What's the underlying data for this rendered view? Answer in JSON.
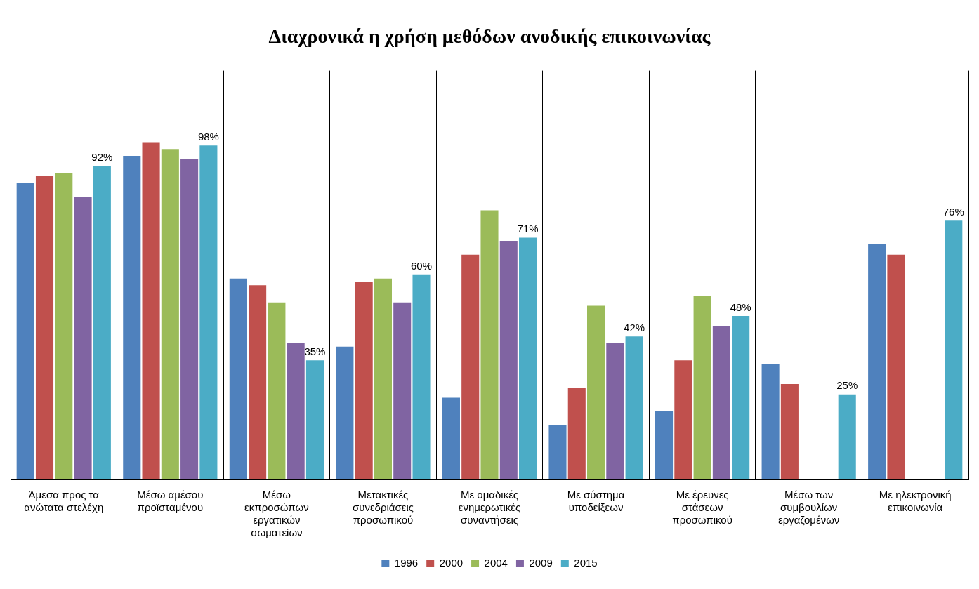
{
  "chart_data": {
    "type": "bar",
    "title": "Διαχρονικά η χρήση μεθόδων ανοδικής επικοινωνίας",
    "categories": [
      "Άμεσα προς τα ανώτατα στελέχη",
      "Μέσω αμέσου προϊσταμένου",
      "Μέσω εκπροσώπων εργατικών σωματείων",
      "Μετακτικές συνεδριάσεις προσωπικού",
      "Με ομαδικές ενημερωτικές συναντήσεις",
      "Με σύστημα υποδείξεων",
      "Με έρευνες στάσεων προσωπικού",
      "Μέσω των συμβουλίων εργαζομένων",
      "Με ηλεκτρονική επικοινωνία"
    ],
    "series": [
      {
        "name": "1996",
        "color": "#4f81bd",
        "values": [
          87,
          95,
          59,
          39,
          24,
          16,
          20,
          34,
          69
        ]
      },
      {
        "name": "2000",
        "color": "#c0504d",
        "values": [
          89,
          99,
          57,
          58,
          66,
          27,
          35,
          28,
          66
        ]
      },
      {
        "name": "2004",
        "color": "#9bbb59",
        "values": [
          90,
          97,
          52,
          59,
          79,
          51,
          54,
          null,
          null
        ]
      },
      {
        "name": "2009",
        "color": "#8064a2",
        "values": [
          83,
          94,
          40,
          52,
          70,
          40,
          45,
          null,
          null
        ]
      },
      {
        "name": "2015",
        "color": "#4bacc6",
        "values": [
          92,
          98,
          35,
          60,
          71,
          42,
          48,
          25,
          76
        ],
        "value_labels": [
          "92%",
          "98%",
          "35%",
          "60%",
          "71%",
          "42%",
          "48%",
          "25%",
          "76%"
        ]
      }
    ],
    "ylim": [
      0,
      120
    ],
    "grid": "x",
    "legend": "bottom",
    "tick_labels": "x"
  }
}
